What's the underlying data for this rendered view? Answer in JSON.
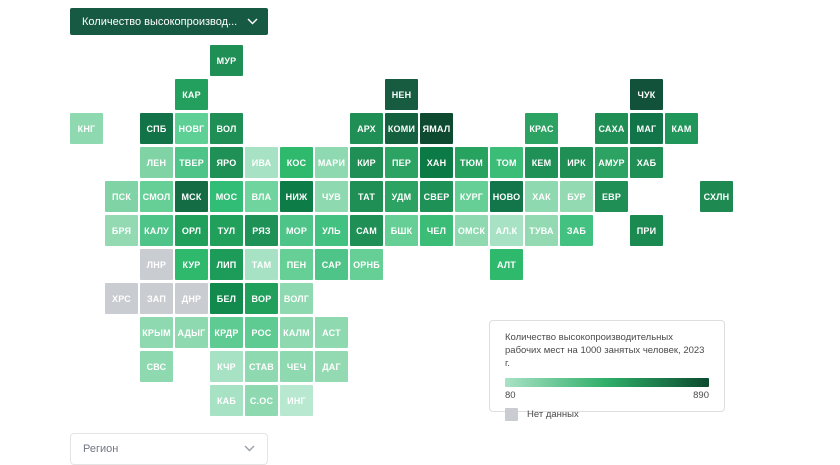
{
  "controls": {
    "indicator_dropdown": {
      "label": "Количество высокопроизвод..."
    },
    "region_dropdown": {
      "label": "Регион"
    }
  },
  "colors": {
    "dropdown_bg": "#175a44",
    "legend_gradient_mid": "#2eae68"
  },
  "legend": {
    "min_label": "80",
    "max_label": "890"
  },
  "chart_data": {
    "type": "heatmap",
    "title": "Количество высокопроизводительных рабочих мест на 1000 занятых человек, 2023 г.",
    "scale": {
      "min": 80,
      "max": 890,
      "gradient_start": "#a9e2c5",
      "gradient_end": "#0d4a2f"
    },
    "no_data": {
      "label": "Нет данных",
      "color": "#c9ccd0"
    },
    "legend_position": "bottom-right",
    "regions": [
      {
        "label": "МУР",
        "col": 4,
        "row": 0,
        "color": "#1f8f55"
      },
      {
        "label": "КАР",
        "col": 3,
        "row": 1,
        "color": "#23a05e"
      },
      {
        "label": "НЕН",
        "col": 9,
        "row": 1,
        "color": "#175c41"
      },
      {
        "label": "ЧУК",
        "col": 16,
        "row": 1,
        "color": "#13523a"
      },
      {
        "label": "КНГ",
        "col": 0,
        "row": 2,
        "color": "#8fd9b0"
      },
      {
        "label": "СПБ",
        "col": 2,
        "row": 2,
        "color": "#117347"
      },
      {
        "label": "НОВГ",
        "col": 3,
        "row": 2,
        "color": "#5ed096"
      },
      {
        "label": "ВОЛ",
        "col": 4,
        "row": 2,
        "color": "#1f8f55"
      },
      {
        "label": "АРХ",
        "col": 8,
        "row": 2,
        "color": "#1f8f55"
      },
      {
        "label": "КОМИ",
        "col": 9,
        "row": 2,
        "color": "#14613f"
      },
      {
        "label": "ЯМАЛ",
        "col": 10,
        "row": 2,
        "color": "#0d4a2f"
      },
      {
        "label": "КРАС",
        "col": 13,
        "row": 2,
        "color": "#2ca263"
      },
      {
        "label": "САХА",
        "col": 15,
        "row": 2,
        "color": "#1f8f55"
      },
      {
        "label": "МАГ",
        "col": 16,
        "row": 2,
        "color": "#117549"
      },
      {
        "label": "КАМ",
        "col": 17,
        "row": 2,
        "color": "#21965a"
      },
      {
        "label": "ЛЕН",
        "col": 2,
        "row": 3,
        "color": "#7fd3a4"
      },
      {
        "label": "ТВЕР",
        "col": 3,
        "row": 3,
        "color": "#4ec488"
      },
      {
        "label": "ЯРО",
        "col": 4,
        "row": 3,
        "color": "#1f9156"
      },
      {
        "label": "ИВА",
        "col": 5,
        "row": 3,
        "color": "#a8e2c4"
      },
      {
        "label": "КОС",
        "col": 6,
        "row": 3,
        "color": "#2eb96d"
      },
      {
        "label": "МАРИ",
        "col": 7,
        "row": 3,
        "color": "#8fd9b0"
      },
      {
        "label": "КИР",
        "col": 8,
        "row": 3,
        "color": "#1f8f55"
      },
      {
        "label": "ПЕР",
        "col": 9,
        "row": 3,
        "color": "#2ca263"
      },
      {
        "label": "ХАН",
        "col": 10,
        "row": 3,
        "color": "#0c7a45"
      },
      {
        "label": "ТЮМ",
        "col": 11,
        "row": 3,
        "color": "#27a25f"
      },
      {
        "label": "ТОМ",
        "col": 12,
        "row": 3,
        "color": "#3bbd77"
      },
      {
        "label": "КЕМ",
        "col": 13,
        "row": 3,
        "color": "#1f9156"
      },
      {
        "label": "ИРК",
        "col": 14,
        "row": 3,
        "color": "#1f8f55"
      },
      {
        "label": "АМУР",
        "col": 15,
        "row": 3,
        "color": "#2ca263"
      },
      {
        "label": "ХАБ",
        "col": 16,
        "row": 3,
        "color": "#1f8f55"
      },
      {
        "label": "ПСК",
        "col": 1,
        "row": 4,
        "color": "#7fd3a4"
      },
      {
        "label": "СМОЛ",
        "col": 2,
        "row": 4,
        "color": "#66cf96"
      },
      {
        "label": "МСК",
        "col": 3,
        "row": 4,
        "color": "#146c45"
      },
      {
        "label": "МОС",
        "col": 4,
        "row": 4,
        "color": "#32bd76"
      },
      {
        "label": "ВЛА",
        "col": 5,
        "row": 4,
        "color": "#6fd49d"
      },
      {
        "label": "НИЖ",
        "col": 6,
        "row": 4,
        "color": "#0d7c46"
      },
      {
        "label": "ЧУВ",
        "col": 7,
        "row": 4,
        "color": "#8fd9b0"
      },
      {
        "label": "ТАТ",
        "col": 8,
        "row": 4,
        "color": "#1f8f55"
      },
      {
        "label": "УДМ",
        "col": 9,
        "row": 4,
        "color": "#2ca263"
      },
      {
        "label": "СВЕР",
        "col": 10,
        "row": 4,
        "color": "#1e9156"
      },
      {
        "label": "КУРГ",
        "col": 11,
        "row": 4,
        "color": "#66cf96"
      },
      {
        "label": "НОВО",
        "col": 12,
        "row": 4,
        "color": "#13754a"
      },
      {
        "label": "ХАК",
        "col": 13,
        "row": 4,
        "color": "#8fd9b0"
      },
      {
        "label": "БУР",
        "col": 14,
        "row": 4,
        "color": "#93dab3"
      },
      {
        "label": "ЕВР",
        "col": 15,
        "row": 4,
        "color": "#1f8f55"
      },
      {
        "label": "СХЛН",
        "col": 18,
        "row": 4,
        "color": "#1e8a52"
      },
      {
        "label": "БРЯ",
        "col": 1,
        "row": 5,
        "color": "#93dab3"
      },
      {
        "label": "КАЛУ",
        "col": 2,
        "row": 5,
        "color": "#4ec488"
      },
      {
        "label": "ОРЛ",
        "col": 3,
        "row": 5,
        "color": "#21a05c"
      },
      {
        "label": "ТУЛ",
        "col": 4,
        "row": 5,
        "color": "#21a05c"
      },
      {
        "label": "РЯЗ",
        "col": 5,
        "row": 5,
        "color": "#1d9156"
      },
      {
        "label": "МОР",
        "col": 6,
        "row": 5,
        "color": "#4ec488"
      },
      {
        "label": "УЛЬ",
        "col": 7,
        "row": 5,
        "color": "#43c180"
      },
      {
        "label": "САМ",
        "col": 8,
        "row": 5,
        "color": "#1f8f55"
      },
      {
        "label": "БШК",
        "col": 9,
        "row": 5,
        "color": "#66cf96"
      },
      {
        "label": "ЧЕЛ",
        "col": 10,
        "row": 5,
        "color": "#3bbd77"
      },
      {
        "label": "ОМСК",
        "col": 11,
        "row": 5,
        "color": "#8fd9b0"
      },
      {
        "label": "АЛ.К",
        "col": 12,
        "row": 5,
        "color": "#a8e2c4"
      },
      {
        "label": "ТУВА",
        "col": 13,
        "row": 5,
        "color": "#93dab3"
      },
      {
        "label": "ЗАБ",
        "col": 14,
        "row": 5,
        "color": "#43c180"
      },
      {
        "label": "ПРИ",
        "col": 16,
        "row": 5,
        "color": "#1b8a50"
      },
      {
        "label": "ЛНР",
        "col": 2,
        "row": 6,
        "color": "#c9ccd0"
      },
      {
        "label": "КУР",
        "col": 3,
        "row": 6,
        "color": "#2eb96d"
      },
      {
        "label": "ЛИП",
        "col": 4,
        "row": 6,
        "color": "#1d9b58"
      },
      {
        "label": "ТАМ",
        "col": 5,
        "row": 6,
        "color": "#a8e2c4"
      },
      {
        "label": "ПЕН",
        "col": 6,
        "row": 6,
        "color": "#66cf96"
      },
      {
        "label": "САР",
        "col": 7,
        "row": 6,
        "color": "#4ec488"
      },
      {
        "label": "ОРНБ",
        "col": 8,
        "row": 6,
        "color": "#66cf96"
      },
      {
        "label": "АЛТ",
        "col": 12,
        "row": 6,
        "color": "#2eb96d"
      },
      {
        "label": "ХРС",
        "col": 1,
        "row": 7,
        "color": "#c9ccd0"
      },
      {
        "label": "ЗАП",
        "col": 2,
        "row": 7,
        "color": "#c9ccd0"
      },
      {
        "label": "ДНР",
        "col": 3,
        "row": 7,
        "color": "#c9ccd0"
      },
      {
        "label": "БЕЛ",
        "col": 4,
        "row": 7,
        "color": "#128a4e"
      },
      {
        "label": "ВОР",
        "col": 5,
        "row": 7,
        "color": "#21a05c"
      },
      {
        "label": "ВОЛГ",
        "col": 6,
        "row": 7,
        "color": "#8fd9b0"
      },
      {
        "label": "КРЫМ",
        "col": 2,
        "row": 8,
        "color": "#8fd9b0"
      },
      {
        "label": "АДЫГ",
        "col": 3,
        "row": 8,
        "color": "#8fd9b0"
      },
      {
        "label": "КРДР",
        "col": 4,
        "row": 8,
        "color": "#5ecb92"
      },
      {
        "label": "РОС",
        "col": 5,
        "row": 8,
        "color": "#5ecb92"
      },
      {
        "label": "КАЛМ",
        "col": 6,
        "row": 8,
        "color": "#8fd9b0"
      },
      {
        "label": "АСТ",
        "col": 7,
        "row": 8,
        "color": "#8fd9b0"
      },
      {
        "label": "СВС",
        "col": 2,
        "row": 9,
        "color": "#8fd9b0"
      },
      {
        "label": "КЧР",
        "col": 4,
        "row": 9,
        "color": "#a8e2c4"
      },
      {
        "label": "СТАВ",
        "col": 5,
        "row": 9,
        "color": "#8fd9b0"
      },
      {
        "label": "ЧЕЧ",
        "col": 6,
        "row": 9,
        "color": "#8fd9b0"
      },
      {
        "label": "ДАГ",
        "col": 7,
        "row": 9,
        "color": "#93dab3"
      },
      {
        "label": "КАБ",
        "col": 4,
        "row": 10,
        "color": "#a8e2c4"
      },
      {
        "label": "С.ОС",
        "col": 5,
        "row": 10,
        "color": "#8fd9b0"
      },
      {
        "label": "ИНГ",
        "col": 6,
        "row": 10,
        "color": "#b9e8d0"
      }
    ]
  }
}
